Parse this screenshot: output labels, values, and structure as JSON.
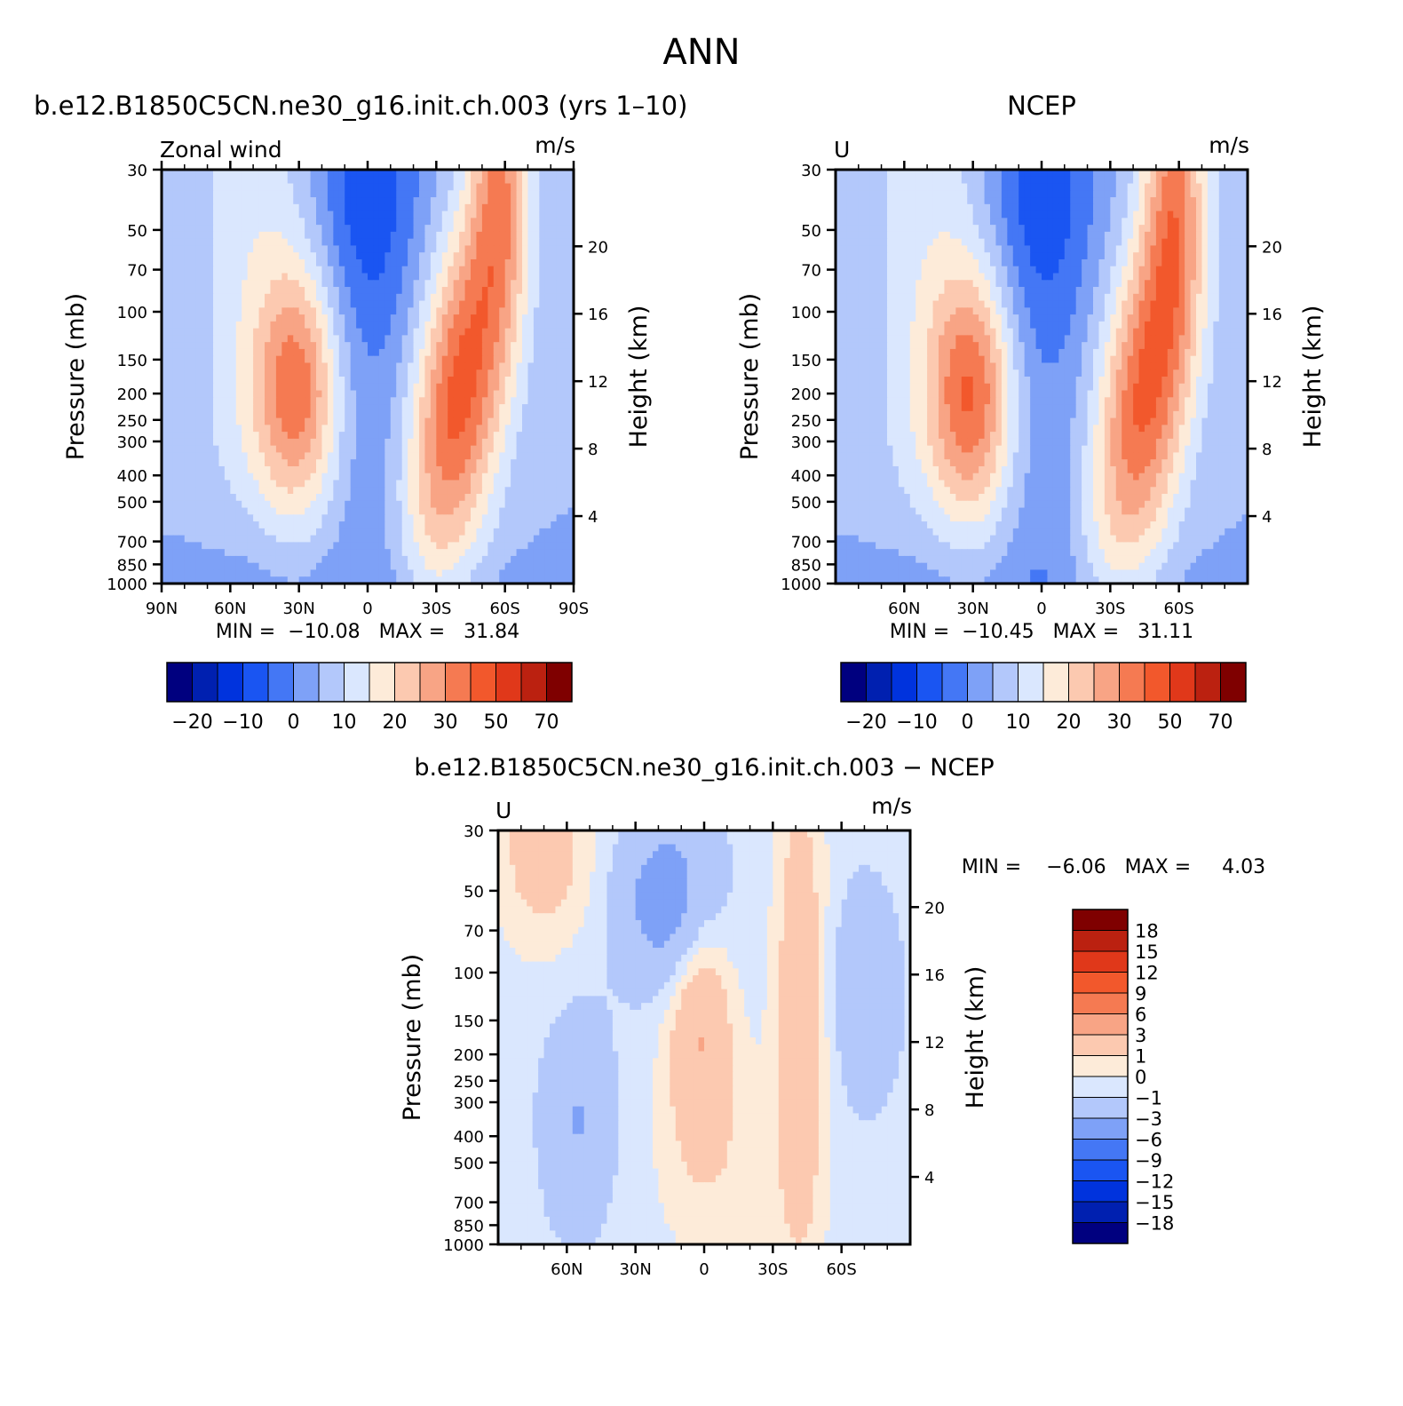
{
  "figure": {
    "title": "ANN"
  },
  "panels": {
    "model": {
      "title": "b.e12.B1850C5CN.ne30_g16.init.ch.003 (yrs 1–10)",
      "left_label": "Zonal wind",
      "units": "m/s",
      "y_label": "Pressure (mb)",
      "y2_label": "Height (km)",
      "stats": "MIN =  −10.08   MAX =   31.84"
    },
    "obs": {
      "title": "NCEP",
      "left_label": "U",
      "units": "m/s",
      "y_label": "Pressure (mb)",
      "y2_label": "Height (km)",
      "stats": "MIN =  −10.45   MAX =   31.11"
    },
    "diff": {
      "title": "b.e12.B1850C5CN.ne30_g16.init.ch.003 − NCEP",
      "left_label": "U",
      "units": "m/s",
      "y_label": "Pressure (mb)",
      "y2_label": "Height (km)",
      "stats": "MIN =    −6.06   MAX =     4.03"
    }
  },
  "colors": {
    "full_field": [
      "#00007f",
      "#0020b0",
      "#0033dd",
      "#1a55f2",
      "#4477f5",
      "#7ea1f7",
      "#b3c8fb",
      "#dae7fe",
      "#fdebd9",
      "#fcc9b0",
      "#f8a485",
      "#f57a52",
      "#f2582c",
      "#e0381a",
      "#bb2110",
      "#7f0000"
    ],
    "difference": [
      "#00007f",
      "#0020b0",
      "#0033dd",
      "#1a55f2",
      "#4477f5",
      "#7ea1f7",
      "#b3c8fb",
      "#dae7fe",
      "#fdebd9",
      "#fcc9b0",
      "#f8a485",
      "#f57a52",
      "#f2582c",
      "#e0381a",
      "#bb2110",
      "#7f0000"
    ]
  },
  "chart_data": [
    {
      "type": "heatmap",
      "name": "model",
      "x_ticks": [
        "90N",
        "60N",
        "30N",
        "0",
        "30S",
        "60S",
        "90S"
      ],
      "x_range": [
        90,
        -90
      ],
      "pressure_ticks": [
        30,
        50,
        70,
        100,
        150,
        200,
        250,
        300,
        400,
        500,
        700,
        850,
        1000
      ],
      "height_ticks": [
        20,
        16,
        12,
        8,
        4
      ],
      "y_scale": "log",
      "colorbar_labels": [
        "−20",
        "−10",
        "0",
        "10",
        "20",
        "30",
        "50",
        "70"
      ],
      "colorbar_orientation": "horizontal",
      "min": -10.08,
      "max": 31.84,
      "contour_levels": [
        -25,
        -20,
        -15,
        -10,
        -5,
        0,
        5,
        10,
        15,
        20,
        25,
        30,
        40,
        50,
        60,
        70
      ],
      "features": {
        "nh_jet": {
          "lat": 30,
          "pressure": 190,
          "max": 25
        },
        "sh_jet": {
          "lat": -40,
          "pressure": 200,
          "max": 32
        },
        "easterlies": {
          "lat": 0,
          "pressure": 35,
          "min": -10
        }
      }
    },
    {
      "type": "heatmap",
      "name": "obs",
      "x_ticks": [
        "60N",
        "30N",
        "0",
        "30S",
        "60S"
      ],
      "x_range": [
        90,
        -90
      ],
      "pressure_ticks": [
        30,
        50,
        70,
        100,
        150,
        200,
        250,
        300,
        400,
        500,
        700,
        850,
        1000
      ],
      "height_ticks": [
        20,
        16,
        12,
        8,
        4
      ],
      "y_scale": "log",
      "colorbar_labels": [
        "−20",
        "−10",
        "0",
        "10",
        "20",
        "30",
        "50",
        "70"
      ],
      "colorbar_orientation": "horizontal",
      "min": -10.45,
      "max": 31.11,
      "contour_levels": [
        -25,
        -20,
        -15,
        -10,
        -5,
        0,
        5,
        10,
        15,
        20,
        25,
        30,
        40,
        50,
        60,
        70
      ],
      "features": {
        "nh_jet": {
          "lat": 30,
          "pressure": 200,
          "max": 27
        },
        "sh_jet": {
          "lat": -45,
          "pressure": 200,
          "max": 31
        },
        "easterlies": {
          "lat": 0,
          "pressure": 35,
          "min": -10
        }
      }
    },
    {
      "type": "heatmap",
      "name": "difference",
      "x_ticks": [
        "60N",
        "30N",
        "0",
        "30S",
        "60S"
      ],
      "x_range": [
        90,
        -90
      ],
      "pressure_ticks": [
        30,
        50,
        70,
        100,
        150,
        200,
        250,
        300,
        400,
        500,
        700,
        850,
        1000
      ],
      "height_ticks": [
        20,
        16,
        12,
        8,
        4
      ],
      "y_scale": "log",
      "colorbar_labels": [
        "18",
        "15",
        "12",
        "9",
        "6",
        "3",
        "1",
        "0",
        "−1",
        "−3",
        "−6",
        "−9",
        "−12",
        "−15",
        "−18"
      ],
      "colorbar_orientation": "vertical",
      "min": -6.06,
      "max": 4.03,
      "contour_levels": [
        -18,
        -15,
        -12,
        -9,
        -6,
        -3,
        -1,
        0,
        1,
        3,
        6,
        9,
        12,
        15,
        18
      ]
    }
  ]
}
